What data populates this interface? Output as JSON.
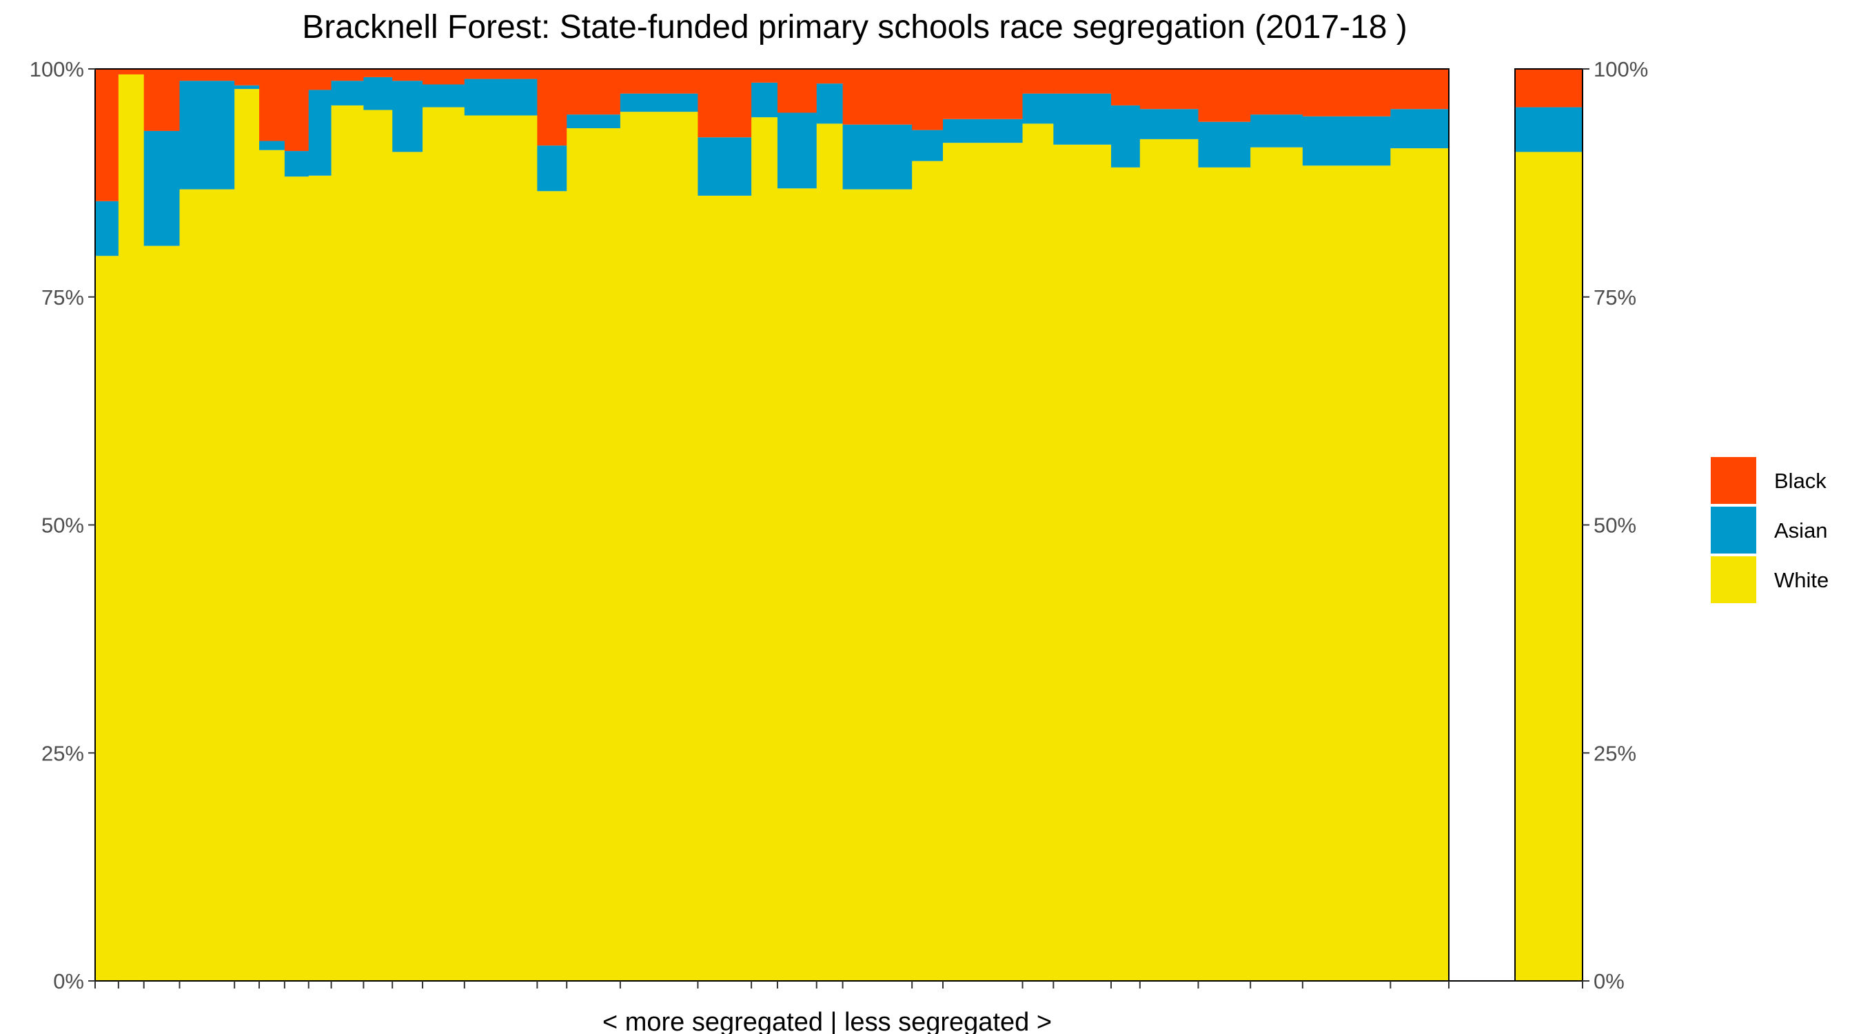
{
  "chart_data": {
    "type": "bar",
    "stacked": true,
    "variable_width": true,
    "title": "Bracknell Forest: State-funded primary schools race segregation (2017-18 )",
    "xlabel": "< more segregated | less segregated >",
    "ylabel": "",
    "ylim": [
      0,
      100
    ],
    "y_ticks": [
      "0%",
      "25%",
      "50%",
      "75%",
      "100%"
    ],
    "y_axis_both_sides": true,
    "legend_position": "right",
    "colors": {
      "Black": "#FF4500",
      "Asian": "#0099CC",
      "White": "#F5E400"
    },
    "legend": [
      "Black",
      "Asian",
      "White"
    ],
    "schools": [
      {
        "width": 34,
        "White": 79.5,
        "Asian": 6.0,
        "Black": 14.5
      },
      {
        "width": 37,
        "White": 99.4,
        "Asian": 0.0,
        "Black": 0.6
      },
      {
        "width": 52,
        "White": 80.6,
        "Asian": 12.6,
        "Black": 6.8
      },
      {
        "width": 80,
        "White": 86.8,
        "Asian": 11.9,
        "Black": 1.3
      },
      {
        "width": 36,
        "White": 97.8,
        "Asian": 0.4,
        "Black": 1.8
      },
      {
        "width": 37,
        "White": 91.1,
        "Asian": 1.0,
        "Black": 7.9
      },
      {
        "width": 35,
        "White": 88.2,
        "Asian": 2.8,
        "Black": 9.0
      },
      {
        "width": 33,
        "White": 88.3,
        "Asian": 9.4,
        "Black": 2.3
      },
      {
        "width": 47,
        "White": 96.0,
        "Asian": 2.7,
        "Black": 1.3
      },
      {
        "width": 42,
        "White": 95.5,
        "Asian": 3.6,
        "Black": 0.9
      },
      {
        "width": 44,
        "White": 90.9,
        "Asian": 7.8,
        "Black": 1.3
      },
      {
        "width": 61,
        "White": 95.8,
        "Asian": 2.5,
        "Black": 1.7
      },
      {
        "width": 106,
        "White": 94.9,
        "Asian": 4.0,
        "Black": 1.1
      },
      {
        "width": 43,
        "White": 86.6,
        "Asian": 5.0,
        "Black": 8.4
      },
      {
        "width": 78,
        "White": 93.5,
        "Asian": 1.5,
        "Black": 5.0
      },
      {
        "width": 113,
        "White": 95.3,
        "Asian": 2.0,
        "Black": 2.7
      },
      {
        "width": 78,
        "White": 86.1,
        "Asian": 6.4,
        "Black": 7.5
      },
      {
        "width": 38,
        "White": 94.7,
        "Asian": 3.8,
        "Black": 1.5
      },
      {
        "width": 57,
        "White": 86.9,
        "Asian": 8.3,
        "Black": 4.8
      },
      {
        "width": 38,
        "White": 94.0,
        "Asian": 4.4,
        "Black": 1.6
      },
      {
        "width": 101,
        "White": 86.8,
        "Asian": 7.1,
        "Black": 6.1
      },
      {
        "width": 45,
        "White": 89.9,
        "Asian": 3.4,
        "Black": 6.7
      },
      {
        "width": 116,
        "White": 91.9,
        "Asian": 2.6,
        "Black": 5.5
      },
      {
        "width": 45,
        "White": 94.0,
        "Asian": 3.3,
        "Black": 2.7
      },
      {
        "width": 84,
        "White": 91.7,
        "Asian": 5.6,
        "Black": 2.7
      },
      {
        "width": 42,
        "White": 89.2,
        "Asian": 6.8,
        "Black": 4.0
      },
      {
        "width": 85,
        "White": 92.3,
        "Asian": 3.3,
        "Black": 4.4
      },
      {
        "width": 76,
        "White": 89.2,
        "Asian": 5.0,
        "Black": 5.8
      },
      {
        "width": 76,
        "White": 91.4,
        "Asian": 3.6,
        "Black": 5.0
      },
      {
        "width": 128,
        "White": 89.4,
        "Asian": 5.4,
        "Black": 5.2
      },
      {
        "width": 85,
        "White": 91.3,
        "Asian": 4.3,
        "Black": 4.4
      }
    ],
    "overall": {
      "White": 90.9,
      "Asian": 4.9,
      "Black": 4.2
    }
  }
}
